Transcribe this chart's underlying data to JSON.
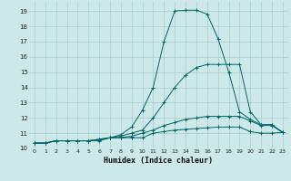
{
  "xlabel": "Humidex (Indice chaleur)",
  "bg_color": "#cce8e8",
  "grid_color": "#aacccc",
  "line_color": "#006666",
  "xlim": [
    -0.5,
    23.5
  ],
  "ylim": [
    10.0,
    19.6
  ],
  "xticks": [
    0,
    1,
    2,
    3,
    4,
    5,
    6,
    7,
    8,
    9,
    10,
    11,
    12,
    13,
    14,
    15,
    16,
    17,
    18,
    19,
    20,
    21,
    22,
    23
  ],
  "yticks": [
    10,
    11,
    12,
    13,
    14,
    15,
    16,
    17,
    18,
    19
  ],
  "series": [
    {
      "x": [
        0,
        1,
        2,
        3,
        4,
        5,
        6,
        7,
        8,
        9,
        10,
        11,
        12,
        13,
        14,
        15,
        16,
        17,
        18,
        19,
        20,
        21,
        22,
        23
      ],
      "y": [
        10.35,
        10.35,
        10.5,
        10.5,
        10.5,
        10.5,
        10.5,
        10.7,
        10.7,
        10.7,
        10.7,
        11.0,
        11.1,
        11.2,
        11.25,
        11.3,
        11.35,
        11.4,
        11.4,
        11.4,
        11.1,
        11.0,
        11.0,
        11.05
      ]
    },
    {
      "x": [
        0,
        1,
        2,
        3,
        4,
        5,
        6,
        7,
        8,
        9,
        10,
        11,
        12,
        13,
        14,
        15,
        16,
        17,
        18,
        19,
        20,
        21,
        22,
        23
      ],
      "y": [
        10.35,
        10.35,
        10.5,
        10.5,
        10.5,
        10.5,
        10.55,
        10.7,
        10.7,
        10.8,
        11.0,
        11.2,
        11.5,
        11.7,
        11.9,
        12.0,
        12.1,
        12.1,
        12.1,
        12.1,
        11.8,
        11.5,
        11.5,
        11.05
      ]
    },
    {
      "x": [
        0,
        1,
        2,
        3,
        4,
        5,
        6,
        7,
        8,
        9,
        10,
        11,
        12,
        13,
        14,
        15,
        16,
        17,
        18,
        19,
        20,
        21,
        22,
        23
      ],
      "y": [
        10.35,
        10.35,
        10.5,
        10.5,
        10.5,
        10.5,
        10.6,
        10.7,
        10.8,
        11.0,
        11.2,
        12.0,
        13.0,
        14.0,
        14.8,
        15.3,
        15.5,
        15.5,
        15.5,
        15.5,
        12.4,
        11.55,
        11.55,
        11.05
      ]
    },
    {
      "x": [
        0,
        1,
        2,
        3,
        4,
        5,
        6,
        7,
        8,
        9,
        10,
        11,
        12,
        13,
        14,
        15,
        16,
        17,
        18,
        19,
        20,
        21,
        22,
        23
      ],
      "y": [
        10.35,
        10.35,
        10.5,
        10.5,
        10.5,
        10.5,
        10.6,
        10.7,
        10.9,
        11.4,
        12.5,
        14.0,
        17.0,
        19.0,
        19.05,
        19.05,
        18.8,
        17.2,
        15.0,
        12.4,
        11.9,
        11.55,
        11.55,
        11.05
      ]
    }
  ]
}
